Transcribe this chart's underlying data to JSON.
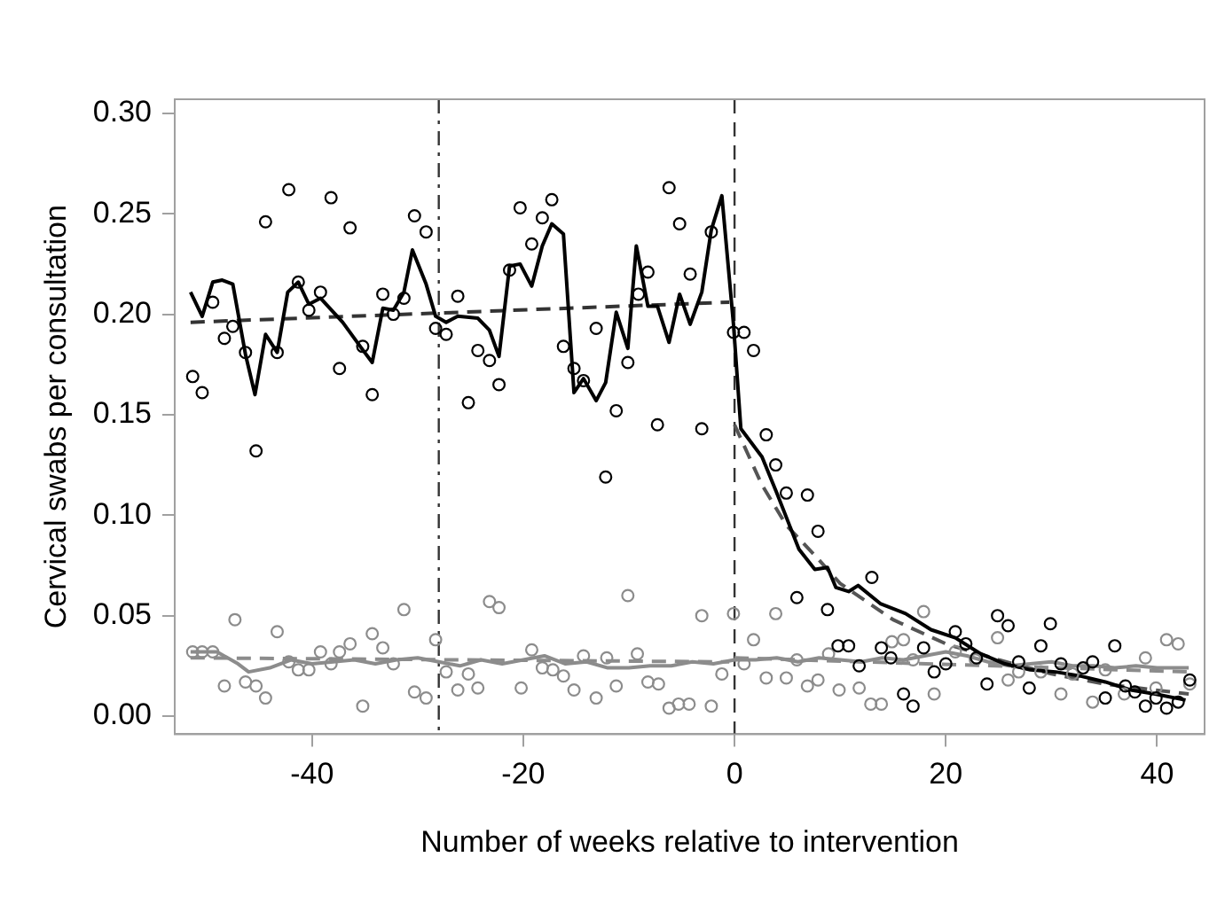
{
  "chart_data": {
    "type": "scatter",
    "xlabel": "Number of weeks relative to intervention",
    "ylabel": "Cervical swabs per consultation",
    "xlim": [
      -53,
      44.5
    ],
    "xticks": [
      -40,
      -20,
      0,
      20,
      40
    ],
    "ylim": [
      -0.009,
      0.307
    ],
    "yticks": [
      {
        "value": 0,
        "label": "0.00"
      },
      {
        "value": 0.05,
        "label": "0.05"
      },
      {
        "value": 0.1,
        "label": "0.10"
      },
      {
        "value": 0.15,
        "label": "0.15"
      },
      {
        "value": 0.2,
        "label": "0.20"
      },
      {
        "value": 0.25,
        "label": "0.25"
      },
      {
        "value": 0.3,
        "label": "0.30"
      }
    ],
    "grid": false,
    "legend": false,
    "ref_lines": [
      {
        "axis": "x",
        "value": -28,
        "line_style": "dashdot",
        "color": "#333333"
      },
      {
        "axis": "x",
        "value": 0,
        "line_style": "dashed",
        "color": "#333333"
      }
    ],
    "series": [
      {
        "type": "scatter",
        "marker": "circle",
        "color": "#000000",
        "x": [
          -51.3,
          -50.4,
          -49.4,
          -48.3,
          -47.5,
          -46.3,
          -45.3,
          -44.4,
          -43.3,
          -42.2,
          -41.3,
          -40.3,
          -39.2,
          -38.2,
          -37.4,
          -36.4,
          -35.2,
          -34.3,
          -33.3,
          -32.3,
          -31.3,
          -30.3,
          -29.2,
          -28.3,
          -27.3,
          -26.2,
          -25.2,
          -24.3,
          -23.2,
          -22.3,
          -21.3,
          -20.3,
          -19.2,
          -18.2,
          -17.3,
          -16.2,
          -15.2,
          -14.3,
          -13.1,
          -12.2,
          -11.2,
          -10.1,
          -9.1,
          -8.2,
          -7.3,
          -6.2,
          -5.2,
          -4.2,
          -3.1,
          -2.2,
          -0.1,
          0.9,
          1.8,
          3.0,
          3.9,
          4.9,
          5.9,
          6.9,
          7.9,
          8.8,
          9.8,
          10.8,
          11.8,
          13.0,
          13.9,
          14.8,
          16.0,
          16.9,
          17.9,
          18.9,
          20.0,
          20.9,
          21.9,
          22.9,
          23.9,
          24.9,
          25.9,
          26.9,
          27.9,
          29.0,
          29.9,
          30.9,
          33.0,
          33.9,
          35.1,
          36.0,
          37.0,
          37.9,
          38.9,
          39.9,
          40.9,
          42.0,
          43.1
        ],
        "values": [
          0.169,
          0.161,
          0.206,
          0.188,
          0.194,
          0.181,
          0.132,
          0.246,
          0.181,
          0.262,
          0.216,
          0.202,
          0.211,
          0.258,
          0.173,
          0.243,
          0.184,
          0.16,
          0.21,
          0.2,
          0.208,
          0.249,
          0.241,
          0.193,
          0.19,
          0.209,
          0.156,
          0.182,
          0.177,
          0.165,
          0.222,
          0.253,
          0.235,
          0.248,
          0.257,
          0.184,
          0.173,
          0.167,
          0.193,
          0.119,
          0.152,
          0.176,
          0.21,
          0.221,
          0.145,
          0.263,
          0.245,
          0.22,
          0.143,
          0.241,
          0.191,
          0.191,
          0.182,
          0.14,
          0.125,
          0.111,
          0.059,
          0.11,
          0.092,
          0.053,
          0.035,
          0.035,
          0.025,
          0.069,
          0.034,
          0.029,
          0.011,
          0.005,
          0.034,
          0.022,
          0.026,
          0.042,
          0.036,
          0.029,
          0.016,
          0.05,
          0.045,
          0.027,
          0.014,
          0.035,
          0.046,
          0.026,
          0.024,
          0.027,
          0.009,
          0.035,
          0.015,
          0.012,
          0.005,
          0.009,
          0.004,
          0.007,
          0.018
        ]
      },
      {
        "type": "scatter",
        "marker": "circle",
        "color": "#8c8c8c",
        "x": [
          -51.3,
          -50.4,
          -49.4,
          -48.3,
          -47.3,
          -46.3,
          -45.3,
          -44.4,
          -43.3,
          -42.2,
          -41.3,
          -40.3,
          -39.2,
          -38.2,
          -37.4,
          -36.4,
          -35.2,
          -34.3,
          -33.3,
          -32.3,
          -31.3,
          -30.3,
          -29.2,
          -28.3,
          -27.3,
          -26.2,
          -25.2,
          -24.3,
          -23.2,
          -22.3,
          -20.2,
          -19.2,
          -18.2,
          -17.2,
          -16.2,
          -15.2,
          -14.3,
          -13.1,
          -12.1,
          -11.2,
          -10.1,
          -9.2,
          -8.2,
          -7.2,
          -6.2,
          -5.3,
          -4.3,
          -3.1,
          -2.2,
          -1.2,
          -0.1,
          0.9,
          1.8,
          3.0,
          3.9,
          4.9,
          5.9,
          6.9,
          7.9,
          8.9,
          9.9,
          11.8,
          12.9,
          13.9,
          14.9,
          16.0,
          16.9,
          17.9,
          18.9,
          20.9,
          22.8,
          24.9,
          25.9,
          26.9,
          29.0,
          30.9,
          32.0,
          33.9,
          35.1,
          36.9,
          38.9,
          39.9,
          40.9,
          42.0,
          43.1
        ],
        "values": [
          0.032,
          0.032,
          0.032,
          0.015,
          0.048,
          0.017,
          0.015,
          0.009,
          0.042,
          0.027,
          0.023,
          0.023,
          0.032,
          0.026,
          0.032,
          0.036,
          0.005,
          0.041,
          0.034,
          0.026,
          0.053,
          0.012,
          0.009,
          0.038,
          0.022,
          0.013,
          0.021,
          0.014,
          0.057,
          0.054,
          0.014,
          0.033,
          0.024,
          0.023,
          0.02,
          0.013,
          0.03,
          0.009,
          0.029,
          0.015,
          0.06,
          0.031,
          0.017,
          0.016,
          0.004,
          0.006,
          0.006,
          0.05,
          0.005,
          0.021,
          0.051,
          0.026,
          0.038,
          0.019,
          0.051,
          0.019,
          0.028,
          0.015,
          0.018,
          0.031,
          0.013,
          0.014,
          0.006,
          0.006,
          0.037,
          0.038,
          0.028,
          0.052,
          0.011,
          0.032,
          0.028,
          0.039,
          0.018,
          0.022,
          0.022,
          0.011,
          0.021,
          0.007,
          0.023,
          0.011,
          0.029,
          0.014,
          0.038,
          0.036,
          0.016
        ]
      },
      {
        "type": "line",
        "marker": "none",
        "line_style": "solid",
        "color": "#000000",
        "x": [
          -51.5,
          -50.4,
          -49.4,
          -48.5,
          -47.5,
          -46.3,
          -45.4,
          -44.4,
          -43.3,
          -42.3,
          -41.3,
          -40.3,
          -39.2,
          -37.1,
          -35.3,
          -34.3,
          -33.3,
          -32.3,
          -31.3,
          -30.5,
          -29.2,
          -28.3,
          -27.3,
          -26.2,
          -24.3,
          -23.2,
          -22.3,
          -21.3,
          -20.3,
          -19.2,
          -18.2,
          -17.3,
          -16.2,
          -15.2,
          -14.3,
          -13.1,
          -12.2,
          -11.2,
          -10.1,
          -9.3,
          -8.2,
          -7.3,
          -6.2,
          -5.2,
          -4.2,
          -3.1,
          -2.2,
          -1.2,
          -0.1,
          0.6,
          2.6,
          4.0,
          5.2,
          6.1,
          7.6,
          8.8,
          9.6,
          10.8,
          11.7,
          13.8,
          16.2,
          18.6,
          20.9,
          23.3,
          25.6,
          28.0,
          30.4,
          32.7,
          35.1,
          37.5,
          39.8,
          42.7
        ],
        "values": [
          0.211,
          0.199,
          0.216,
          0.217,
          0.215,
          0.18,
          0.16,
          0.19,
          0.181,
          0.211,
          0.216,
          0.205,
          0.208,
          0.196,
          0.183,
          0.176,
          0.203,
          0.202,
          0.211,
          0.232,
          0.215,
          0.199,
          0.196,
          0.199,
          0.198,
          0.192,
          0.179,
          0.224,
          0.225,
          0.214,
          0.234,
          0.245,
          0.24,
          0.161,
          0.168,
          0.157,
          0.166,
          0.201,
          0.183,
          0.234,
          0.204,
          0.204,
          0.186,
          0.21,
          0.195,
          0.211,
          0.242,
          0.259,
          0.195,
          0.143,
          0.129,
          0.111,
          0.095,
          0.083,
          0.073,
          0.074,
          0.064,
          0.062,
          0.065,
          0.056,
          0.051,
          0.043,
          0.039,
          0.031,
          0.026,
          0.023,
          0.022,
          0.02,
          0.017,
          0.013,
          0.011,
          0.008
        ]
      },
      {
        "type": "line",
        "marker": "none",
        "line_style": "solid",
        "color": "#8c8c8c",
        "x": [
          -51.5,
          -49,
          -47,
          -46,
          -44,
          -42,
          -40,
          -38,
          -36,
          -34,
          -32,
          -30,
          -28,
          -26,
          -24,
          -22,
          -20,
          -18,
          -16,
          -14,
          -12,
          -10,
          -8,
          -6,
          -4,
          -2,
          0,
          2,
          4,
          6,
          8,
          10,
          12,
          14,
          16,
          18,
          20,
          22,
          24,
          26,
          28,
          30,
          32,
          34,
          36,
          38,
          40,
          43
        ],
        "values": [
          0.032,
          0.032,
          0.026,
          0.022,
          0.024,
          0.028,
          0.026,
          0.027,
          0.028,
          0.026,
          0.028,
          0.029,
          0.027,
          0.025,
          0.028,
          0.026,
          0.028,
          0.03,
          0.026,
          0.027,
          0.024,
          0.024,
          0.025,
          0.025,
          0.027,
          0.026,
          0.028,
          0.028,
          0.029,
          0.027,
          0.029,
          0.028,
          0.027,
          0.029,
          0.028,
          0.03,
          0.032,
          0.03,
          0.027,
          0.025,
          0.026,
          0.027,
          0.025,
          0.025,
          0.024,
          0.025,
          0.024,
          0.024
        ]
      },
      {
        "type": "line",
        "marker": "none",
        "line_style": "dashed",
        "color": "#333333",
        "x": [
          -51.5,
          -0.5
        ],
        "values": [
          0.196,
          0.206
        ]
      },
      {
        "type": "line",
        "marker": "none",
        "line_style": "dashed",
        "color": "#555555",
        "x": [
          0,
          2.6,
          4.9,
          7.6,
          10,
          15,
          20,
          25,
          30,
          35,
          43
        ],
        "values": [
          0.145,
          0.115,
          0.095,
          0.08,
          0.066,
          0.048,
          0.036,
          0.028,
          0.021,
          0.016,
          0.011
        ]
      },
      {
        "type": "line",
        "marker": "none",
        "line_style": "dashed",
        "color": "#8c8c8c",
        "x": [
          -51.5,
          -0.5
        ],
        "values": [
          0.029,
          0.027
        ]
      },
      {
        "type": "line",
        "marker": "none",
        "line_style": "dashed",
        "color": "#8c8c8c",
        "x": [
          0,
          43
        ],
        "values": [
          0.029,
          0.022
        ]
      }
    ]
  }
}
